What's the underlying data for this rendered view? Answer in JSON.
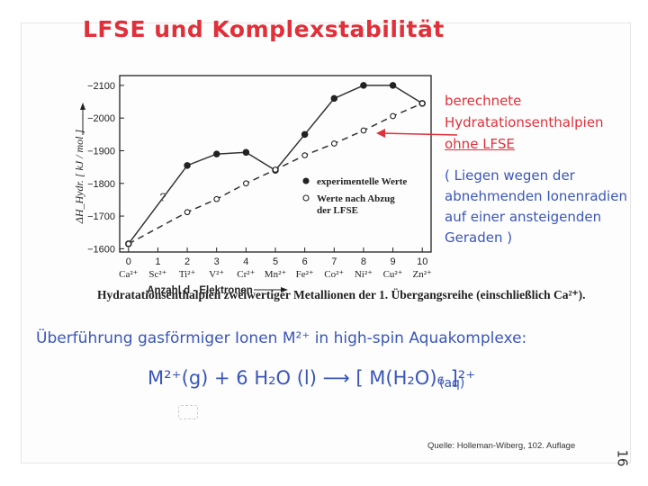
{
  "title": "LFSE und Komplexstabilität",
  "annotation_red": {
    "lines": [
      "berechnete",
      "Hydratationsenthalpien",
      "ohne LFSE"
    ]
  },
  "annotation_blue": {
    "lines": [
      "( Liegen wegen der",
      "abnehmenden Ionenradien",
      "auf einer ansteigenden",
      "Geraden )"
    ]
  },
  "caption": "Hydratationsenthalpien zweiwertiger Metallionen der 1. Übergangsreihe (einschließlich Ca²⁺).",
  "reaction_title": "Überführung gasförmiger Ionen M²⁺ in high-spin Aquakomplexe:",
  "equation": "M²⁺(g) + 6 H₂O (l) ⟶ [ M(H₂O)₆ ]²⁺",
  "equation_phase": "(aq)",
  "source": "Quelle: Holleman-Wiberg, 102. Auflage",
  "page_number": "16",
  "chart_data": {
    "type": "line",
    "ylabel": "ΔH_Hydr. [ kJ / mol ]",
    "xlabel": "Anzahl d - Elektronen",
    "x": [
      0,
      1,
      2,
      3,
      4,
      5,
      6,
      7,
      8,
      9,
      10
    ],
    "x_ticks": [
      "0",
      "1",
      "2",
      "3",
      "4",
      "5",
      "6",
      "7",
      "8",
      "9",
      "10"
    ],
    "ions": [
      "Ca²⁺",
      "Sc²⁺",
      "Ti²⁺",
      "V²⁺",
      "Cr²⁺",
      "Mn²⁺",
      "Fe²⁺",
      "Co²⁺",
      "Ni²⁺",
      "Cu²⁺",
      "Zn²⁺"
    ],
    "y_ticks": [
      -2100,
      -2000,
      -1900,
      -1800,
      -1700,
      -1600
    ],
    "y_tick_labels": [
      "−2100",
      "−2000",
      "−1900",
      "−1800",
      "−1700",
      "−1600"
    ],
    "ylim": [
      -1590,
      -2130
    ],
    "xlim": [
      -0.3,
      10.3
    ],
    "series": [
      {
        "name": "experimentelle Werte",
        "marker": "filled",
        "line": "solid",
        "values": [
          -1615,
          null,
          -1855,
          -1890,
          -1895,
          -1840,
          -1950,
          -2060,
          -2100,
          -2100,
          -2045
        ]
      },
      {
        "name": "Werte nach Abzug der LFSE",
        "marker": "open",
        "line": "dashed",
        "values": [
          -1615,
          null,
          -1712,
          -1752,
          -1800,
          -1842,
          -1886,
          -1922,
          -1962,
          -2006,
          -2045
        ]
      }
    ],
    "annotations": [
      {
        "text": "?",
        "x": 1,
        "y": -1745
      }
    ],
    "legend": [
      {
        "text_lines": [
          "experimentelle Werte"
        ],
        "marker": "filled"
      },
      {
        "text_lines": [
          "Werte nach Abzug",
          "der LFSE"
        ],
        "marker": "open"
      }
    ],
    "legend_position": "lower-right",
    "grid": false,
    "colors": {
      "axes": "#222222",
      "note_red": "#e0303a",
      "note_blue": "#3a56b8"
    }
  }
}
